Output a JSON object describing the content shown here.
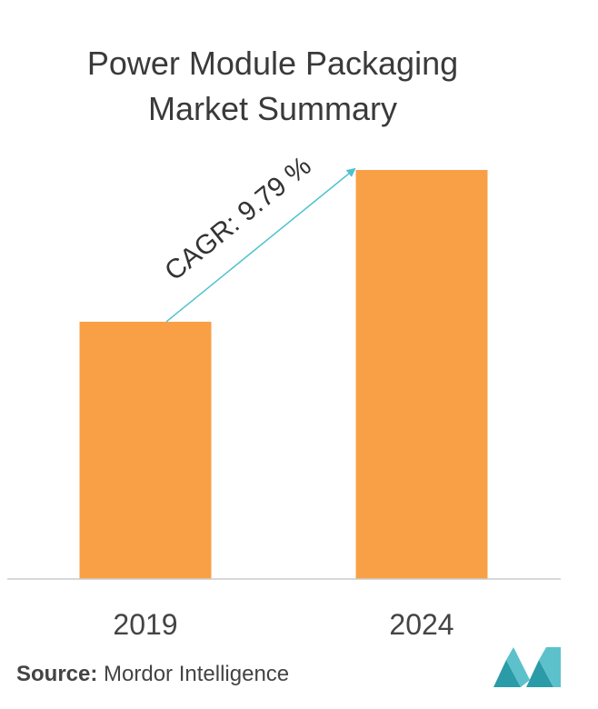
{
  "title": {
    "line1": "Power Module Packaging",
    "line2": "Market Summary"
  },
  "chart_data": {
    "type": "bar",
    "categories": [
      "2019",
      "2024"
    ],
    "values": [
      1.0,
      1.59
    ],
    "ylim": [
      0,
      1.65
    ],
    "grid": false,
    "bar_color": "#F9A046",
    "annotation": {
      "text": "CAGR: 9.79 %",
      "arrow_color": "#4FC1CE"
    }
  },
  "source": {
    "label": "Source:",
    "text": "Mordor Intelligence"
  },
  "colors": {
    "title": "#3a3a3a",
    "axis": "#cccccc",
    "logo": "#2B9BA8"
  }
}
